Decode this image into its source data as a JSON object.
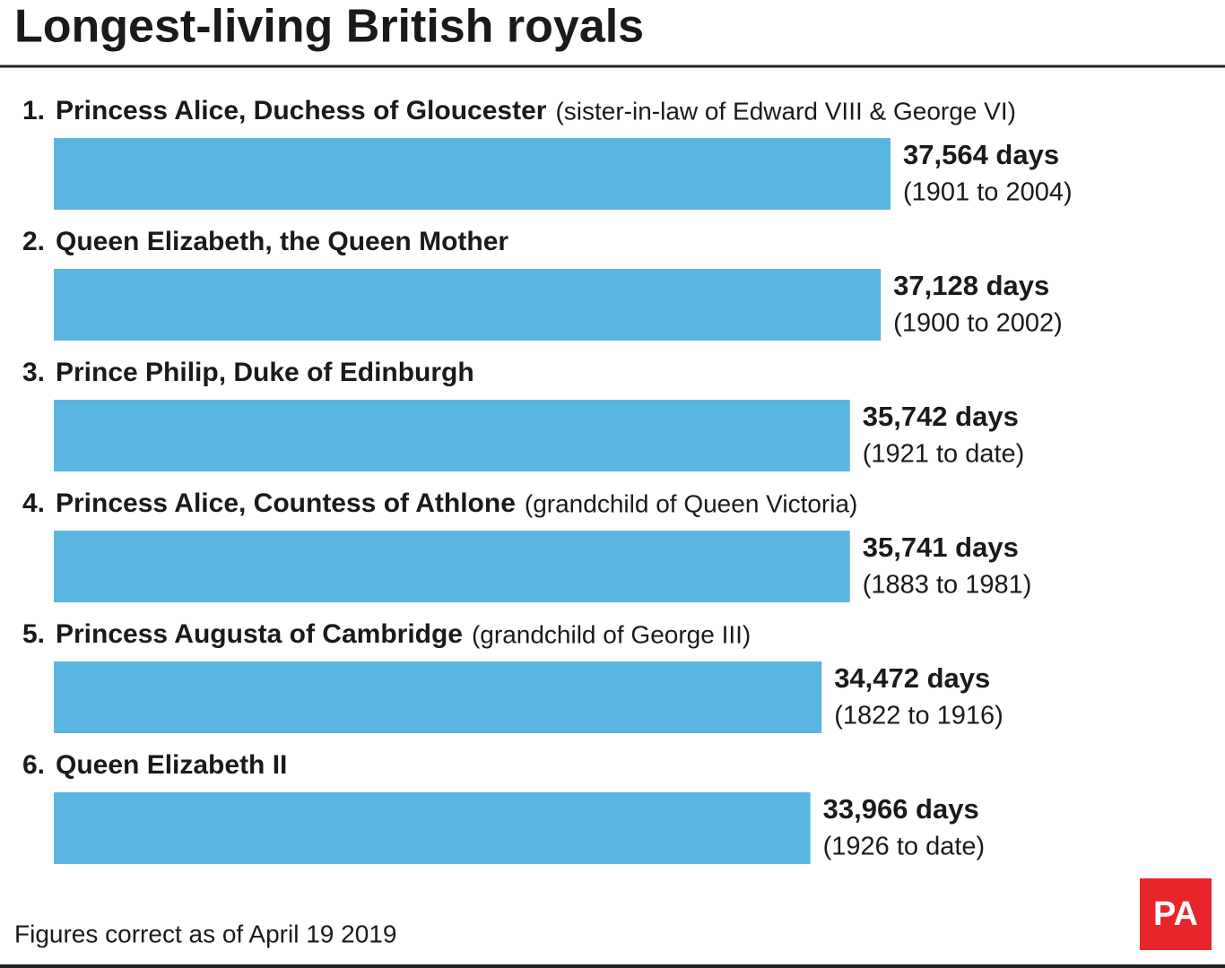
{
  "chart_data": {
    "type": "bar",
    "orientation": "horizontal",
    "title": "Longest-living British royals",
    "ranks": [
      "1.",
      "2.",
      "3.",
      "4.",
      "5.",
      "6."
    ],
    "categories": [
      "Princess Alice, Duchess of Gloucester",
      "Queen Elizabeth, the Queen Mother",
      "Prince Philip, Duke of Edinburgh",
      "Princess Alice, Countess of Athlone",
      "Princess Augusta of Cambridge",
      "Queen Elizabeth II"
    ],
    "notes": [
      "(sister-in-law of Edward VIII & George VI)",
      null,
      null,
      "(grandchild of Queen Victoria)",
      "(grandchild of George III)",
      null
    ],
    "values": [
      37564,
      37128,
      35742,
      35741,
      34472,
      33966
    ],
    "value_labels": [
      "37,564 days",
      "37,128 days",
      "35,742 days",
      "35,741 days",
      "34,472 days",
      "33,966 days"
    ],
    "periods": [
      "(1901 to 2004)",
      "(1900 to 2002)",
      "(1921 to date)",
      "(1883 to 1981)",
      "(1822 to 1916)",
      "(1926 to date)"
    ],
    "color": "#5ab6e0",
    "footnote": "Figures correct as of April 19 2019",
    "logo": "PA"
  }
}
